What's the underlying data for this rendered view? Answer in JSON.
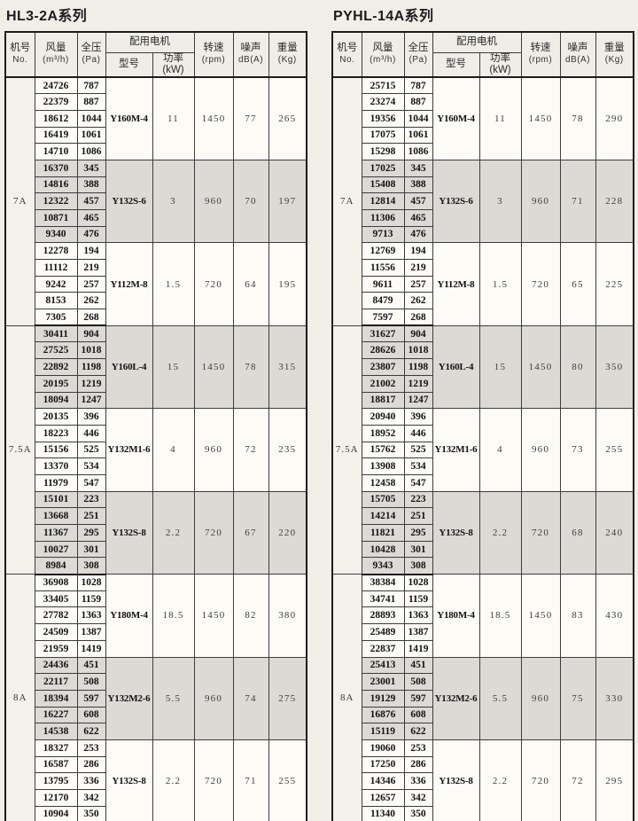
{
  "colors": {
    "page_bg": "#f0eee7",
    "cell_bg": "#fcfbf6",
    "shaded_cell_bg": "#dcdad4",
    "header_bg": "#efede5",
    "border": "#1b1b1b"
  },
  "columns": {
    "no": [
      "机号",
      "No."
    ],
    "airflow": [
      "风量",
      "(m³/h)"
    ],
    "pressure": [
      "全压",
      "(Pa)"
    ],
    "motor": "配用电机",
    "model": "型号",
    "power": "功率(kW)",
    "rpm": [
      "转速",
      "(rpm)"
    ],
    "noise": [
      "噪声",
      "dB(A)"
    ],
    "weight": [
      "重量",
      "(Kg)"
    ]
  },
  "tables": [
    {
      "title": "HL3-2A系列",
      "machines": [
        {
          "no": "7A",
          "groups": [
            {
              "shaded": false,
              "model": "Y160M-4",
              "power": "11",
              "rpm": "1450",
              "noise": "77",
              "weight": "265",
              "rows": [
                [
                  "24726",
                  "787"
                ],
                [
                  "22379",
                  "887"
                ],
                [
                  "18612",
                  "1044"
                ],
                [
                  "16419",
                  "1061"
                ],
                [
                  "14710",
                  "1086"
                ]
              ]
            },
            {
              "shaded": true,
              "model": "Y132S-6",
              "power": "3",
              "rpm": "960",
              "noise": "70",
              "weight": "197",
              "rows": [
                [
                  "16370",
                  "345"
                ],
                [
                  "14816",
                  "388"
                ],
                [
                  "12322",
                  "457"
                ],
                [
                  "10871",
                  "465"
                ],
                [
                  "9340",
                  "476"
                ]
              ]
            },
            {
              "shaded": false,
              "model": "Y112M-8",
              "power": "1.5",
              "rpm": "720",
              "noise": "64",
              "weight": "195",
              "rows": [
                [
                  "12278",
                  "194"
                ],
                [
                  "11112",
                  "219"
                ],
                [
                  "9242",
                  "257"
                ],
                [
                  "8153",
                  "262"
                ],
                [
                  "7305",
                  "268"
                ]
              ]
            }
          ]
        },
        {
          "no": "7.5A",
          "groups": [
            {
              "shaded": true,
              "model": "Y160L-4",
              "power": "15",
              "rpm": "1450",
              "noise": "78",
              "weight": "315",
              "rows": [
                [
                  "30411",
                  "904"
                ],
                [
                  "27525",
                  "1018"
                ],
                [
                  "22892",
                  "1198"
                ],
                [
                  "20195",
                  "1219"
                ],
                [
                  "18094",
                  "1247"
                ]
              ]
            },
            {
              "shaded": false,
              "model": "Y132M1-6",
              "power": "4",
              "rpm": "960",
              "noise": "72",
              "weight": "235",
              "rows": [
                [
                  "20135",
                  "396"
                ],
                [
                  "18223",
                  "446"
                ],
                [
                  "15156",
                  "525"
                ],
                [
                  "13370",
                  "534"
                ],
                [
                  "11979",
                  "547"
                ]
              ]
            },
            {
              "shaded": true,
              "model": "Y132S-8",
              "power": "2.2",
              "rpm": "720",
              "noise": "67",
              "weight": "220",
              "rows": [
                [
                  "15101",
                  "223"
                ],
                [
                  "13668",
                  "251"
                ],
                [
                  "11367",
                  "295"
                ],
                [
                  "10027",
                  "301"
                ],
                [
                  "8984",
                  "308"
                ]
              ]
            }
          ]
        },
        {
          "no": "8A",
          "groups": [
            {
              "shaded": false,
              "model": "Y180M-4",
              "power": "18.5",
              "rpm": "1450",
              "noise": "82",
              "weight": "380",
              "rows": [
                [
                  "36908",
                  "1028"
                ],
                [
                  "33405",
                  "1159"
                ],
                [
                  "27782",
                  "1363"
                ],
                [
                  "24509",
                  "1387"
                ],
                [
                  "21959",
                  "1419"
                ]
              ]
            },
            {
              "shaded": true,
              "model": "Y132M2-6",
              "power": "5.5",
              "rpm": "960",
              "noise": "74",
              "weight": "275",
              "rows": [
                [
                  "24436",
                  "451"
                ],
                [
                  "22117",
                  "508"
                ],
                [
                  "18394",
                  "597"
                ],
                [
                  "16227",
                  "608"
                ],
                [
                  "14538",
                  "622"
                ]
              ]
            },
            {
              "shaded": false,
              "model": "Y132S-8",
              "power": "2.2",
              "rpm": "720",
              "noise": "71",
              "weight": "255",
              "rows": [
                [
                  "18327",
                  "253"
                ],
                [
                  "16587",
                  "286"
                ],
                [
                  "13795",
                  "336"
                ],
                [
                  "12170",
                  "342"
                ],
                [
                  "10904",
                  "350"
                ]
              ]
            }
          ]
        }
      ]
    },
    {
      "title": "PYHL-14A系列",
      "machines": [
        {
          "no": "7A",
          "groups": [
            {
              "shaded": false,
              "model": "Y160M-4",
              "power": "11",
              "rpm": "1450",
              "noise": "78",
              "weight": "290",
              "rows": [
                [
                  "25715",
                  "787"
                ],
                [
                  "23274",
                  "887"
                ],
                [
                  "19356",
                  "1044"
                ],
                [
                  "17075",
                  "1061"
                ],
                [
                  "15298",
                  "1086"
                ]
              ]
            },
            {
              "shaded": true,
              "model": "Y132S-6",
              "power": "3",
              "rpm": "960",
              "noise": "71",
              "weight": "228",
              "rows": [
                [
                  "17025",
                  "345"
                ],
                [
                  "15408",
                  "388"
                ],
                [
                  "12814",
                  "457"
                ],
                [
                  "11306",
                  "465"
                ],
                [
                  "9713",
                  "476"
                ]
              ]
            },
            {
              "shaded": false,
              "model": "Y112M-8",
              "power": "1.5",
              "rpm": "720",
              "noise": "65",
              "weight": "225",
              "rows": [
                [
                  "12769",
                  "194"
                ],
                [
                  "11556",
                  "219"
                ],
                [
                  "9611",
                  "257"
                ],
                [
                  "8479",
                  "262"
                ],
                [
                  "7597",
                  "268"
                ]
              ]
            }
          ]
        },
        {
          "no": "7.5A",
          "groups": [
            {
              "shaded": true,
              "model": "Y160L-4",
              "power": "15",
              "rpm": "1450",
              "noise": "80",
              "weight": "350",
              "rows": [
                [
                  "31627",
                  "904"
                ],
                [
                  "28626",
                  "1018"
                ],
                [
                  "23807",
                  "1198"
                ],
                [
                  "21002",
                  "1219"
                ],
                [
                  "18817",
                  "1247"
                ]
              ]
            },
            {
              "shaded": false,
              "model": "Y132M1-6",
              "power": "4",
              "rpm": "960",
              "noise": "73",
              "weight": "255",
              "rows": [
                [
                  "20940",
                  "396"
                ],
                [
                  "18952",
                  "446"
                ],
                [
                  "15762",
                  "525"
                ],
                [
                  "13908",
                  "534"
                ],
                [
                  "12458",
                  "547"
                ]
              ]
            },
            {
              "shaded": true,
              "model": "Y132S-8",
              "power": "2.2",
              "rpm": "720",
              "noise": "68",
              "weight": "240",
              "rows": [
                [
                  "15705",
                  "223"
                ],
                [
                  "14214",
                  "251"
                ],
                [
                  "11821",
                  "295"
                ],
                [
                  "10428",
                  "301"
                ],
                [
                  "9343",
                  "308"
                ]
              ]
            }
          ]
        },
        {
          "no": "8A",
          "groups": [
            {
              "shaded": false,
              "model": "Y180M-4",
              "power": "18.5",
              "rpm": "1450",
              "noise": "83",
              "weight": "430",
              "rows": [
                [
                  "38384",
                  "1028"
                ],
                [
                  "34741",
                  "1159"
                ],
                [
                  "28893",
                  "1363"
                ],
                [
                  "25489",
                  "1387"
                ],
                [
                  "22837",
                  "1419"
                ]
              ]
            },
            {
              "shaded": true,
              "model": "Y132M2-6",
              "power": "5.5",
              "rpm": "960",
              "noise": "75",
              "weight": "330",
              "rows": [
                [
                  "25413",
                  "451"
                ],
                [
                  "23001",
                  "508"
                ],
                [
                  "19129",
                  "597"
                ],
                [
                  "16876",
                  "608"
                ],
                [
                  "15119",
                  "622"
                ]
              ]
            },
            {
              "shaded": false,
              "model": "Y132S-8",
              "power": "2.2",
              "rpm": "720",
              "noise": "72",
              "weight": "295",
              "rows": [
                [
                  "19060",
                  "253"
                ],
                [
                  "17250",
                  "286"
                ],
                [
                  "14346",
                  "336"
                ],
                [
                  "12657",
                  "342"
                ],
                [
                  "11340",
                  "350"
                ]
              ]
            }
          ]
        }
      ]
    }
  ]
}
